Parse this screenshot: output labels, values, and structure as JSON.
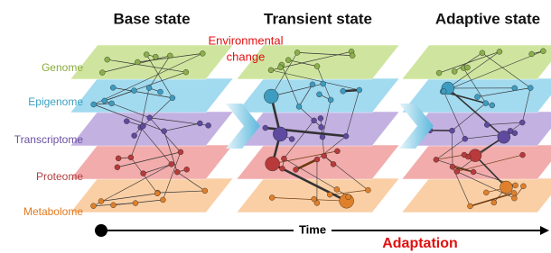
{
  "headings": [
    "Base state",
    "Transient state",
    "Adaptive state"
  ],
  "annotation": {
    "lines": [
      "Environmental",
      "change"
    ]
  },
  "layers": [
    "Genome",
    "Epigenome",
    "Transcriptome",
    "Proteome",
    "Metabolome"
  ],
  "timeline": {
    "label": "Time",
    "caption": "Adaptation"
  }
}
